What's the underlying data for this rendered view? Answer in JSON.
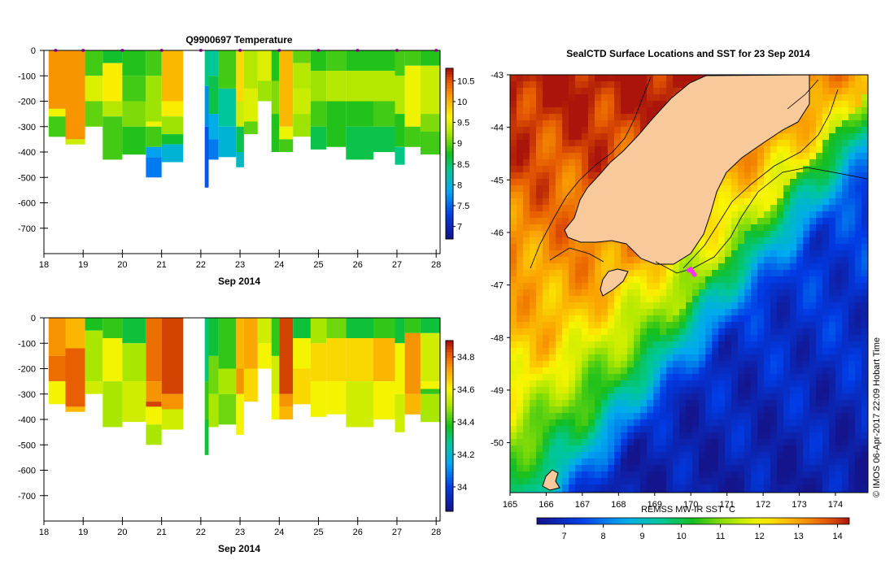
{
  "chart_data": [
    {
      "name": "temperature-profile",
      "type": "heatmap",
      "title": "Q9900697  Temperature",
      "xlabel": "Sep 2014",
      "ylabel": "",
      "x_ticks": [
        "18",
        "19",
        "20",
        "21",
        "22",
        "23",
        "24",
        "25",
        "26",
        "27",
        "28"
      ],
      "xlim": [
        18,
        28.1
      ],
      "y_ticks": [
        "0",
        "-100",
        "-200",
        "-300",
        "-400",
        "-500",
        "-600",
        "-700"
      ],
      "ylim": [
        -800,
        0
      ],
      "colorbar": {
        "ticks": [
          "7",
          "7.5",
          "8",
          "8.5",
          "9",
          "9.5",
          "10",
          "10.5"
        ],
        "range": [
          6.7,
          10.8
        ]
      },
      "profile_markers_day": [
        18.3,
        19.0,
        20.0,
        21.0,
        22.0,
        23.0,
        24.0,
        25.0,
        26.0,
        27.0,
        28.0
      ],
      "profiles": [
        {
          "x0": 18.12,
          "x1": 18.55,
          "depth": 340,
          "layers": [
            [
              0,
              10.2
            ],
            [
              230,
              9.6
            ],
            [
              260,
              8.9
            ]
          ]
        },
        {
          "x0": 18.55,
          "x1": 19.05,
          "depth": 370,
          "layers": [
            [
              0,
              10.2
            ],
            [
              350,
              9.4
            ]
          ]
        },
        {
          "x0": 19.05,
          "x1": 19.5,
          "depth": 300,
          "layers": [
            [
              0,
              8.9
            ],
            [
              100,
              9.5
            ],
            [
              200,
              9.0
            ]
          ]
        },
        {
          "x0": 19.5,
          "x1": 20.0,
          "depth": 430,
          "layers": [
            [
              0,
              8.7
            ],
            [
              50,
              9.7
            ],
            [
              200,
              9.3
            ],
            [
              260,
              8.9
            ]
          ]
        },
        {
          "x0": 20.0,
          "x1": 20.6,
          "depth": 410,
          "layers": [
            [
              0,
              8.8
            ],
            [
              100,
              8.9
            ],
            [
              200,
              9.1
            ],
            [
              300,
              8.8
            ]
          ]
        },
        {
          "x0": 20.6,
          "x1": 21.0,
          "depth": 500,
          "layers": [
            [
              0,
              8.9
            ],
            [
              100,
              9.2
            ],
            [
              280,
              9.6
            ],
            [
              300,
              8.9
            ],
            [
              380,
              7.8
            ],
            [
              420,
              7.6
            ]
          ]
        },
        {
          "x0": 21.0,
          "x1": 21.55,
          "depth": 440,
          "layers": [
            [
              0,
              10.0
            ],
            [
              200,
              9.7
            ],
            [
              260,
              9.2
            ],
            [
              330,
              8.7
            ],
            [
              370,
              8.0
            ]
          ]
        },
        {
          "x0": 22.1,
          "x1": 22.2,
          "depth": 540,
          "layers": [
            [
              0,
              8.4
            ],
            [
              140,
              7.7
            ],
            [
              300,
              7.4
            ]
          ]
        },
        {
          "x0": 22.2,
          "x1": 22.45,
          "depth": 430,
          "layers": [
            [
              0,
              8.3
            ],
            [
              100,
              8.6
            ],
            [
              250,
              7.9
            ],
            [
              350,
              7.6
            ]
          ]
        },
        {
          "x0": 22.45,
          "x1": 22.9,
          "depth": 420,
          "layers": [
            [
              0,
              8.9
            ],
            [
              150,
              8.3
            ],
            [
              300,
              8.0
            ]
          ]
        },
        {
          "x0": 22.9,
          "x1": 23.1,
          "depth": 460,
          "layers": [
            [
              0,
              9.8
            ],
            [
              200,
              9.4
            ],
            [
              300,
              8.6
            ],
            [
              400,
              8.1
            ]
          ]
        },
        {
          "x0": 23.1,
          "x1": 23.45,
          "depth": 330,
          "layers": [
            [
              0,
              9.3
            ],
            [
              150,
              9.5
            ],
            [
              280,
              9.0
            ]
          ]
        },
        {
          "x0": 23.45,
          "x1": 23.8,
          "depth": 200,
          "layers": [
            [
              0,
              9.5
            ],
            [
              120,
              9.2
            ]
          ]
        },
        {
          "x0": 23.8,
          "x1": 24.0,
          "depth": 400,
          "layers": [
            [
              0,
              8.8
            ],
            [
              120,
              9.1
            ],
            [
              250,
              8.8
            ]
          ]
        },
        {
          "x0": 24.0,
          "x1": 24.35,
          "depth": 400,
          "layers": [
            [
              0,
              10.0
            ],
            [
              300,
              9.6
            ],
            [
              350,
              8.9
            ]
          ]
        },
        {
          "x0": 24.35,
          "x1": 24.8,
          "depth": 340,
          "layers": [
            [
              0,
              9.0
            ],
            [
              50,
              9.3
            ],
            [
              150,
              9.4
            ],
            [
              250,
              9.2
            ]
          ]
        },
        {
          "x0": 24.8,
          "x1": 25.2,
          "depth": 390,
          "layers": [
            [
              0,
              8.8
            ],
            [
              80,
              9.2
            ],
            [
              200,
              8.9
            ],
            [
              300,
              8.6
            ]
          ]
        },
        {
          "x0": 25.2,
          "x1": 25.7,
          "depth": 380,
          "layers": [
            [
              0,
              8.9
            ],
            [
              80,
              9.3
            ],
            [
              200,
              8.8
            ],
            [
              320,
              8.8
            ]
          ]
        },
        {
          "x0": 25.7,
          "x1": 26.4,
          "depth": 430,
          "layers": [
            [
              0,
              8.8
            ],
            [
              80,
              9.3
            ],
            [
              200,
              8.8
            ],
            [
              300,
              8.6
            ]
          ]
        },
        {
          "x0": 26.4,
          "x1": 26.95,
          "depth": 400,
          "layers": [
            [
              0,
              8.8
            ],
            [
              80,
              9.3
            ],
            [
              200,
              8.9
            ],
            [
              300,
              8.6
            ]
          ]
        },
        {
          "x0": 26.95,
          "x1": 27.2,
          "depth": 450,
          "layers": [
            [
              0,
              8.9
            ],
            [
              100,
              9.3
            ],
            [
              250,
              8.8
            ],
            [
              380,
              8.4
            ]
          ]
        },
        {
          "x0": 27.2,
          "x1": 27.6,
          "depth": 380,
          "layers": [
            [
              0,
              8.9
            ],
            [
              60,
              9.6
            ],
            [
              300,
              8.9
            ]
          ]
        },
        {
          "x0": 27.6,
          "x1": 28.1,
          "depth": 410,
          "layers": [
            [
              0,
              8.8
            ],
            [
              60,
              9.4
            ],
            [
              250,
              9.1
            ],
            [
              320,
              8.9
            ]
          ]
        }
      ]
    },
    {
      "name": "salinity-profile",
      "type": "heatmap",
      "title": "",
      "xlabel": "Sep 2014",
      "ylabel": "",
      "x_ticks": [
        "18",
        "19",
        "20",
        "21",
        "22",
        "23",
        "24",
        "25",
        "26",
        "27",
        "28"
      ],
      "xlim": [
        18,
        28.1
      ],
      "y_ticks": [
        "0",
        "-100",
        "-200",
        "-300",
        "-400",
        "-500",
        "-600",
        "-700"
      ],
      "ylim": [
        -800,
        0
      ],
      "colorbar": {
        "ticks": [
          "34",
          "34.2",
          "34.4",
          "34.6",
          "34.8"
        ],
        "range": [
          33.85,
          34.9
        ]
      },
      "profiles": [
        {
          "x0": 18.12,
          "x1": 18.55,
          "depth": 340,
          "layers": [
            [
              0,
              34.75
            ],
            [
              150,
              34.8
            ],
            [
              250,
              34.6
            ]
          ]
        },
        {
          "x0": 18.55,
          "x1": 19.05,
          "depth": 370,
          "layers": [
            [
              0,
              34.7
            ],
            [
              120,
              34.82
            ],
            [
              350,
              34.7
            ]
          ]
        },
        {
          "x0": 19.05,
          "x1": 19.5,
          "depth": 300,
          "layers": [
            [
              0,
              34.38
            ],
            [
              50,
              34.5
            ],
            [
              250,
              34.55
            ]
          ]
        },
        {
          "x0": 19.5,
          "x1": 20.0,
          "depth": 430,
          "layers": [
            [
              0,
              34.4
            ],
            [
              80,
              34.6
            ],
            [
              250,
              34.5
            ]
          ]
        },
        {
          "x0": 20.0,
          "x1": 20.6,
          "depth": 410,
          "layers": [
            [
              0,
              34.35
            ],
            [
              100,
              34.5
            ],
            [
              250,
              34.55
            ]
          ]
        },
        {
          "x0": 20.6,
          "x1": 21.0,
          "depth": 500,
          "layers": [
            [
              0,
              34.8
            ],
            [
              250,
              34.75
            ],
            [
              330,
              34.85
            ],
            [
              350,
              34.6
            ],
            [
              420,
              34.5
            ]
          ]
        },
        {
          "x0": 21.0,
          "x1": 21.55,
          "depth": 440,
          "layers": [
            [
              0,
              34.85
            ],
            [
              300,
              34.75
            ],
            [
              360,
              34.55
            ]
          ]
        },
        {
          "x0": 22.1,
          "x1": 22.2,
          "depth": 540,
          "layers": [
            [
              0,
              34.3
            ],
            [
              250,
              34.4
            ],
            [
              400,
              34.35
            ]
          ]
        },
        {
          "x0": 22.2,
          "x1": 22.45,
          "depth": 430,
          "layers": [
            [
              0,
              34.35
            ],
            [
              150,
              34.45
            ],
            [
              300,
              34.5
            ]
          ]
        },
        {
          "x0": 22.45,
          "x1": 22.9,
          "depth": 420,
          "layers": [
            [
              0,
              34.4
            ],
            [
              200,
              34.5
            ],
            [
              300,
              34.45
            ]
          ]
        },
        {
          "x0": 22.9,
          "x1": 23.1,
          "depth": 460,
          "layers": [
            [
              0,
              34.7
            ],
            [
              200,
              34.75
            ],
            [
              300,
              34.6
            ]
          ]
        },
        {
          "x0": 23.1,
          "x1": 23.45,
          "depth": 330,
          "layers": [
            [
              0,
              34.72
            ],
            [
              200,
              34.65
            ]
          ]
        },
        {
          "x0": 23.45,
          "x1": 23.8,
          "depth": 200,
          "layers": [
            [
              0,
              34.55
            ],
            [
              100,
              34.6
            ]
          ]
        },
        {
          "x0": 23.8,
          "x1": 24.0,
          "depth": 400,
          "layers": [
            [
              0,
              34.4
            ],
            [
              150,
              34.55
            ],
            [
              300,
              34.6
            ]
          ]
        },
        {
          "x0": 24.0,
          "x1": 24.35,
          "depth": 400,
          "layers": [
            [
              0,
              34.85
            ],
            [
              300,
              34.75
            ],
            [
              350,
              34.7
            ]
          ]
        },
        {
          "x0": 24.35,
          "x1": 24.8,
          "depth": 340,
          "layers": [
            [
              0,
              34.35
            ],
            [
              80,
              34.6
            ],
            [
              200,
              34.65
            ]
          ]
        },
        {
          "x0": 24.8,
          "x1": 25.2,
          "depth": 390,
          "layers": [
            [
              0,
              34.5
            ],
            [
              100,
              34.65
            ],
            [
              250,
              34.6
            ]
          ]
        },
        {
          "x0": 25.2,
          "x1": 25.7,
          "depth": 380,
          "layers": [
            [
              0,
              34.45
            ],
            [
              80,
              34.65
            ],
            [
              250,
              34.6
            ]
          ]
        },
        {
          "x0": 25.7,
          "x1": 26.4,
          "depth": 430,
          "layers": [
            [
              0,
              34.35
            ],
            [
              80,
              34.65
            ],
            [
              250,
              34.55
            ]
          ]
        },
        {
          "x0": 26.4,
          "x1": 26.95,
          "depth": 400,
          "layers": [
            [
              0,
              34.4
            ],
            [
              80,
              34.7
            ],
            [
              250,
              34.6
            ]
          ]
        },
        {
          "x0": 26.95,
          "x1": 27.2,
          "depth": 450,
          "layers": [
            [
              0,
              34.35
            ],
            [
              100,
              34.6
            ],
            [
              300,
              34.55
            ]
          ]
        },
        {
          "x0": 27.2,
          "x1": 27.6,
          "depth": 380,
          "layers": [
            [
              0,
              34.4
            ],
            [
              60,
              34.75
            ],
            [
              300,
              34.7
            ]
          ]
        },
        {
          "x0": 27.6,
          "x1": 28.1,
          "depth": 410,
          "layers": [
            [
              0,
              34.35
            ],
            [
              60,
              34.55
            ],
            [
              250,
              34.6
            ],
            [
              280,
              34.4
            ],
            [
              300,
              34.5
            ]
          ]
        }
      ]
    },
    {
      "name": "sst-map",
      "type": "heatmap",
      "title": "SealCTD Surface Locations and SST for 23 Sep 2014",
      "xlabel": "",
      "ylabel": "",
      "lon_ticks": [
        "165",
        "166",
        "167",
        "168",
        "169",
        "170",
        "171",
        "172",
        "173",
        "174"
      ],
      "lat_ticks": [
        "-43",
        "-44",
        "-45",
        "-46",
        "-47",
        "-48",
        "-49",
        "-50"
      ],
      "lon_range": [
        165,
        174.9
      ],
      "lat_range": [
        -50.95,
        -43
      ],
      "colorbar": {
        "label": "REMSS MW-IR SST °C",
        "ticks": [
          "7",
          "8",
          "9",
          "10",
          "11",
          "12",
          "13",
          "14"
        ],
        "range": [
          6.3,
          14.3
        ]
      },
      "credit": "© IMOS 06-Apr-2017 22:09 Hobart Time",
      "seal_track": [
        [
          170.0,
          -46.7
        ],
        [
          170.05,
          -46.75
        ],
        [
          170.1,
          -46.8
        ],
        [
          169.95,
          -46.72
        ]
      ]
    }
  ]
}
